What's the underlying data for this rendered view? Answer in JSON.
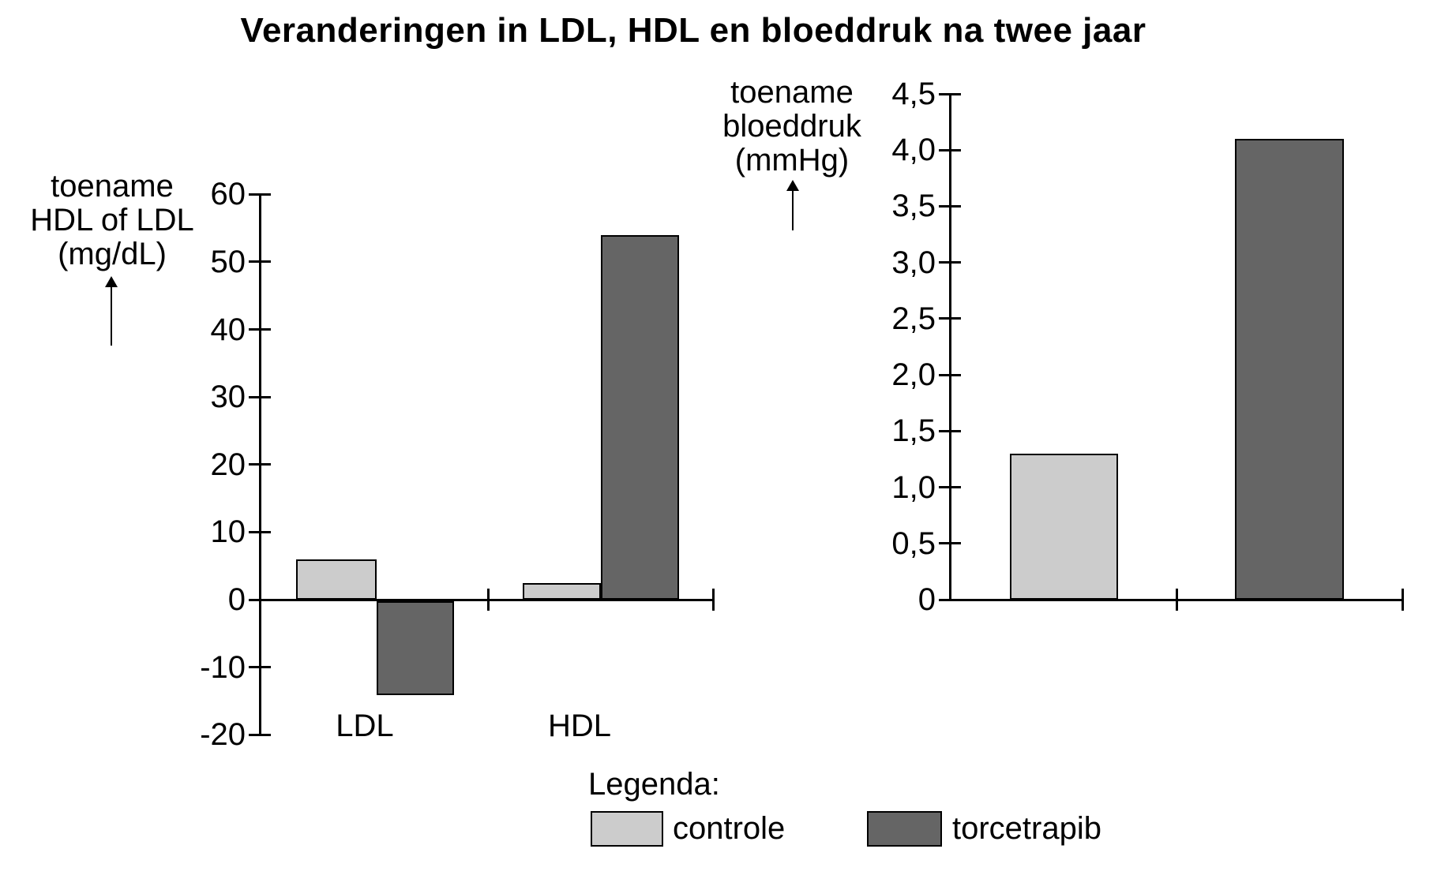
{
  "title": "Veranderingen in LDL, HDL en bloeddruk na twee jaar",
  "colors": {
    "controle": "#cccccc",
    "torcetrapib": "#656565",
    "axis": "#000000"
  },
  "legend": {
    "heading": "Legenda:",
    "items": [
      {
        "label": "controle",
        "color": "#cccccc"
      },
      {
        "label": "torcetrapib",
        "color": "#656565"
      }
    ]
  },
  "chart_data": [
    {
      "type": "bar",
      "title": "",
      "ylabel": "toename HDL of LDL (mg/dL)",
      "ylabel_lines": [
        "toename",
        "HDL of LDL",
        "(mg/dL)"
      ],
      "xlabel": "",
      "categories": [
        "LDL",
        "HDL"
      ],
      "series": [
        {
          "name": "controle",
          "values": [
            6,
            2.5
          ]
        },
        {
          "name": "torcetrapib",
          "values": [
            -14,
            54
          ]
        }
      ],
      "ylim": [
        -20,
        60
      ],
      "ytick_step": 10,
      "yticks": [
        {
          "value": 60,
          "label": "60"
        },
        {
          "value": 50,
          "label": "50"
        },
        {
          "value": 40,
          "label": "40"
        },
        {
          "value": 30,
          "label": "30"
        },
        {
          "value": 20,
          "label": "20"
        },
        {
          "value": 10,
          "label": "10"
        },
        {
          "value": 0,
          "label": "0"
        },
        {
          "value": -10,
          "label": "-10"
        },
        {
          "value": -20,
          "label": "-20"
        }
      ],
      "grid": false,
      "legend_position": "bottom-shared"
    },
    {
      "type": "bar",
      "title": "",
      "ylabel": "toename bloeddruk (mmHg)",
      "ylabel_lines": [
        "toename",
        "bloeddruk",
        "(mmHg)"
      ],
      "xlabel": "",
      "categories": [
        ""
      ],
      "series": [
        {
          "name": "controle",
          "values": [
            1.3
          ]
        },
        {
          "name": "torcetrapib",
          "values": [
            4.1
          ]
        }
      ],
      "ylim": [
        0,
        4.5
      ],
      "ytick_step": 0.5,
      "decimal_separator": ",",
      "yticks": [
        {
          "value": 4.5,
          "label": "4,5"
        },
        {
          "value": 4.0,
          "label": "4,0"
        },
        {
          "value": 3.5,
          "label": "3,5"
        },
        {
          "value": 3.0,
          "label": "3,0"
        },
        {
          "value": 2.5,
          "label": "2,5"
        },
        {
          "value": 2.0,
          "label": "2,0"
        },
        {
          "value": 1.5,
          "label": "1,5"
        },
        {
          "value": 1.0,
          "label": "1,0"
        },
        {
          "value": 0.5,
          "label": "0,5"
        },
        {
          "value": 0,
          "label": "0"
        }
      ],
      "grid": false,
      "legend_position": "bottom-shared"
    }
  ]
}
